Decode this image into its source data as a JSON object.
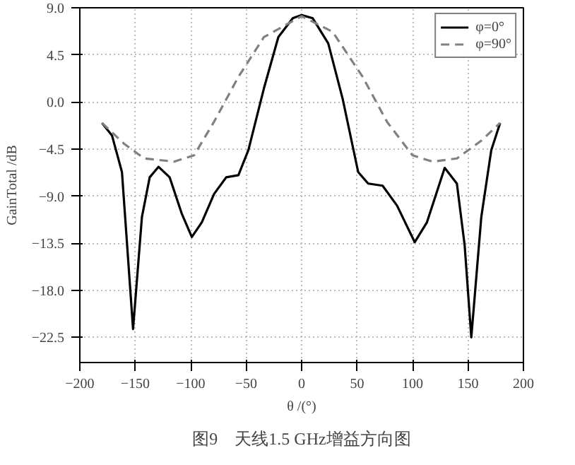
{
  "chart_data": {
    "type": "line",
    "xlabel": "θ /(°)",
    "ylabel": "GainTotal /dB",
    "annotations": [
      "图9　天线1.5 GHz增益方向图"
    ],
    "xlim": [
      -200,
      200
    ],
    "xticks": [
      -200,
      -150,
      -100,
      -50,
      0,
      50,
      100,
      150,
      200
    ],
    "ylim": [
      -24.9,
      9.0
    ],
    "yticks": [
      {
        "value": 9.0,
        "label": "9.0"
      },
      {
        "value": 4.5,
        "label": "4.5"
      },
      {
        "value": 0,
        "label": "0.0"
      },
      {
        "value": -4.5,
        "label": "−4.5"
      },
      {
        "value": -9.0,
        "label": "−9.0"
      },
      {
        "value": -13.5,
        "label": "−13.5"
      },
      {
        "value": -18.0,
        "label": "−18.0"
      },
      {
        "value": -22.5,
        "label": "−22.5"
      }
    ],
    "grid": true,
    "legend": "top right",
    "series": [
      {
        "name": "φ=0°",
        "color": "#000000",
        "line_style": "solid",
        "x": [
          -180,
          -171,
          -162,
          -152,
          -144,
          -137,
          -129,
          -119,
          -108,
          -99,
          -90,
          -79,
          -68,
          -57,
          -48,
          -34,
          -21,
          -8,
          0,
          10,
          24,
          37,
          51,
          60,
          73,
          86,
          102,
          113,
          129,
          140,
          147,
          153,
          162,
          171,
          179
        ],
        "values": [
          -2.0,
          -3.2,
          -6.7,
          -21.7,
          -11.0,
          -7.2,
          -6.2,
          -7.2,
          -10.7,
          -12.9,
          -11.5,
          -8.8,
          -7.2,
          -7.0,
          -4.6,
          1.3,
          6.2,
          8.0,
          8.3,
          8.0,
          5.6,
          0.3,
          -6.7,
          -7.8,
          -8.0,
          -9.9,
          -13.4,
          -11.5,
          -6.3,
          -7.8,
          -13.7,
          -22.5,
          -11.0,
          -4.6,
          -2.0
        ]
      },
      {
        "name": "φ=90°",
        "color": "#808080",
        "line_style": "dashed",
        "x": [
          -180,
          -160,
          -142,
          -115,
          -97,
          -79,
          -57,
          -34,
          0,
          28,
          55,
          77,
          100,
          118,
          140,
          162,
          179
        ],
        "values": [
          -2.0,
          -4.0,
          -5.4,
          -5.7,
          -5.1,
          -1.9,
          2.4,
          6.2,
          8.2,
          6.7,
          2.4,
          -1.9,
          -5.1,
          -5.7,
          -5.4,
          -3.7,
          -2.0
        ]
      }
    ]
  }
}
